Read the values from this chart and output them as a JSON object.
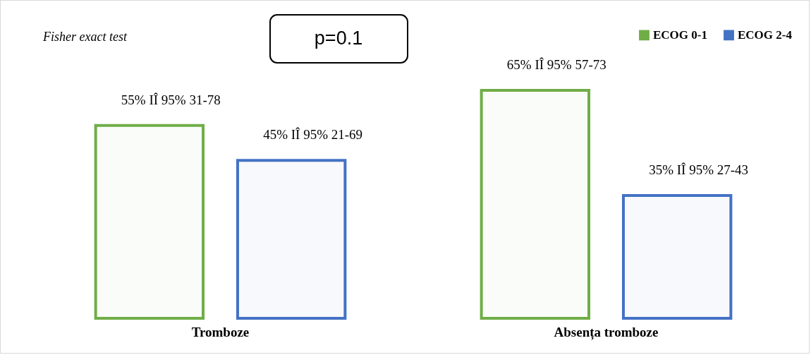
{
  "chart_data": {
    "type": "bar",
    "annotations": [
      "Fisher exact test",
      "p=0.1"
    ],
    "categories": [
      "Tromboze",
      "Absența tromboze"
    ],
    "legend": "top right",
    "series": [
      {
        "name": "ECOG 0-1",
        "color": "#70ad47",
        "values": [
          55,
          65
        ],
        "value_labels": [
          "55% IÎ 95% 31-78",
          "65% IÎ 95% 57-73"
        ]
      },
      {
        "name": "ECOG 2-4",
        "color": "#4472c4",
        "values": [
          45,
          35
        ],
        "value_labels": [
          "45% IÎ 95% 21-69",
          "35% IÎ 95% 27-43"
        ]
      }
    ]
  }
}
